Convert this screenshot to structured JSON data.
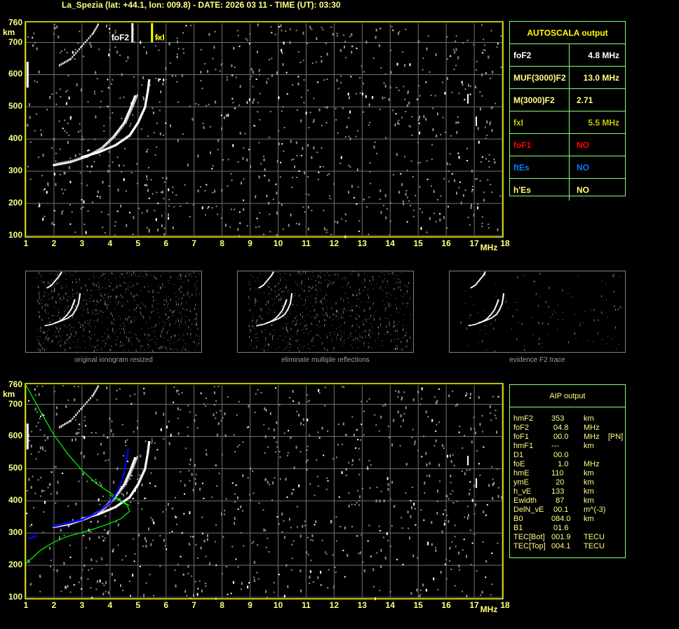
{
  "header": {
    "title": "La_Spezia (lat: +44.1, lon: 009.8) - DATE: 2026 03 11 - TIME (UT): 03:30"
  },
  "chart_data": [
    {
      "type": "scatter",
      "name": "ionogram-autoscala",
      "xlabel": "MHz",
      "ylabel": "km",
      "xlim": [
        1,
        18
      ],
      "ylim": [
        100,
        760
      ],
      "x_ticks": [
        "1",
        "2",
        "3",
        "4",
        "5",
        "6",
        "7",
        "8",
        "9",
        "10",
        "11",
        "12",
        "13",
        "14",
        "15",
        "16",
        "17",
        "18"
      ],
      "y_ticks": [
        "760",
        "700",
        "600",
        "500",
        "400",
        "300",
        "200",
        "100"
      ],
      "grid": true,
      "markers": [
        {
          "label": "foF2",
          "freq": 4.8,
          "color": "#ffffff"
        },
        {
          "label": "fxI",
          "freq": 5.5,
          "color": "#ffff00"
        }
      ],
      "traces": {
        "o_trace": [
          [
            2.0,
            320
          ],
          [
            2.6,
            330
          ],
          [
            3.2,
            348
          ],
          [
            3.7,
            372
          ],
          [
            4.1,
            405
          ],
          [
            4.5,
            450
          ],
          [
            4.75,
            500
          ],
          [
            4.9,
            535
          ]
        ],
        "x_trace": [
          [
            3.0,
            345
          ],
          [
            3.6,
            360
          ],
          [
            4.2,
            382
          ],
          [
            4.7,
            412
          ],
          [
            5.0,
            452
          ],
          [
            5.25,
            500
          ],
          [
            5.35,
            550
          ],
          [
            5.4,
            585
          ]
        ],
        "multiple_reflection": [
          [
            2.2,
            630
          ],
          [
            2.6,
            650
          ],
          [
            3.0,
            690
          ],
          [
            3.4,
            730
          ],
          [
            3.6,
            760
          ]
        ]
      }
    },
    {
      "type": "scatter",
      "name": "ionogram-aip",
      "xlabel": "MHz",
      "ylabel": "km",
      "xlim": [
        1,
        18
      ],
      "ylim": [
        100,
        760
      ],
      "x_ticks": [
        "1",
        "2",
        "3",
        "4",
        "5",
        "6",
        "7",
        "8",
        "9",
        "10",
        "11",
        "12",
        "13",
        "14",
        "15",
        "16",
        "17",
        "18"
      ],
      "y_ticks": [
        "760",
        "700",
        "600",
        "500",
        "400",
        "300",
        "200",
        "100"
      ],
      "grid": true,
      "traces": {
        "o_trace": [
          [
            2.0,
            320
          ],
          [
            2.6,
            330
          ],
          [
            3.2,
            348
          ],
          [
            3.7,
            372
          ],
          [
            4.1,
            405
          ],
          [
            4.5,
            450
          ],
          [
            4.75,
            500
          ],
          [
            4.9,
            535
          ]
        ],
        "x_trace": [
          [
            3.0,
            345
          ],
          [
            3.6,
            360
          ],
          [
            4.2,
            382
          ],
          [
            4.7,
            412
          ],
          [
            5.0,
            452
          ],
          [
            5.25,
            500
          ],
          [
            5.35,
            550
          ],
          [
            5.4,
            585
          ]
        ],
        "multiple_reflection": [
          [
            2.2,
            630
          ],
          [
            2.6,
            650
          ],
          [
            3.0,
            690
          ],
          [
            3.4,
            730
          ],
          [
            3.6,
            760
          ]
        ],
        "aip_fit_blue": [
          [
            2.0,
            322
          ],
          [
            2.5,
            332
          ],
          [
            3.0,
            343
          ],
          [
            3.5,
            362
          ],
          [
            4.0,
            395
          ],
          [
            4.3,
            435
          ],
          [
            4.5,
            485
          ],
          [
            4.6,
            535
          ],
          [
            4.65,
            560
          ]
        ],
        "profile_green_upper": [
          [
            1.0,
            760
          ],
          [
            1.5,
            680
          ],
          [
            2.0,
            605
          ],
          [
            2.5,
            545
          ],
          [
            3.0,
            495
          ],
          [
            3.5,
            455
          ],
          [
            4.0,
            425
          ],
          [
            4.4,
            400
          ],
          [
            4.7,
            385
          ]
        ],
        "profile_green_lower": [
          [
            1.0,
            205
          ],
          [
            1.5,
            245
          ],
          [
            2.0,
            272
          ],
          [
            2.5,
            290
          ],
          [
            3.0,
            302
          ],
          [
            3.5,
            315
          ],
          [
            4.0,
            330
          ],
          [
            4.4,
            345
          ],
          [
            4.7,
            368
          ],
          [
            4.6,
            388
          ],
          [
            4.3,
            403
          ],
          [
            4.0,
            418
          ]
        ]
      },
      "colors": {
        "fit": "#0000ff",
        "profile": "#00ff00"
      }
    }
  ],
  "thumbnails": [
    {
      "caption": "original ionogram resized"
    },
    {
      "caption": "eliminate multiple reflections"
    },
    {
      "caption": "evidence F2 trace"
    }
  ],
  "autoscala": {
    "title": "AUTOSCALA output",
    "rows": [
      {
        "label": "foF2",
        "value": "4.8 MHz",
        "color": "#ffffff"
      },
      {
        "label": "MUF(3000)F2",
        "value": "13.0 MHz",
        "color": "#ffff80"
      },
      {
        "label": "M(3000)F2",
        "value": "2.71",
        "color": "#ffff80"
      },
      {
        "label": "fxI",
        "value": "5.5 MHz",
        "color": "#c8c800"
      },
      {
        "label": "foF1",
        "value": "NO",
        "color": "#ff0000"
      },
      {
        "label": "ftEs",
        "value": "NO",
        "color": "#0080ff"
      },
      {
        "label": "h'Es",
        "value": "NO",
        "color": "#ffff80"
      }
    ]
  },
  "aip": {
    "title": "AIP output",
    "rows": [
      {
        "label": "hmF2",
        "value": "353",
        "unit": "km"
      },
      {
        "label": "foF2",
        "value": " 04.8",
        "unit": "MHz"
      },
      {
        "label": "foF1",
        "value": " 00.0",
        "unit": "MHz    [PN]"
      },
      {
        "label": "hmF1",
        "value": "---",
        "unit": "km"
      },
      {
        "label": "D1",
        "value": " 00.0",
        "unit": ""
      },
      {
        "label": "foE",
        "value": "   1.0",
        "unit": "MHz"
      },
      {
        "label": "hmE",
        "value": "110",
        "unit": "km"
      },
      {
        "label": "ymE",
        "value": "  20",
        "unit": "km"
      },
      {
        "label": "h_vE",
        "value": "133",
        "unit": "km"
      },
      {
        "label": "Ewidth",
        "value": "  87",
        "unit": "km"
      },
      {
        "label": "DelN_vE",
        "value": " 00.1",
        "unit": "m^(-3)"
      },
      {
        "label": "B0",
        "value": "084.0",
        "unit": "km"
      },
      {
        "label": "B1",
        "value": " 01.6",
        "unit": ""
      },
      {
        "label": "TEC[Bot]",
        "value": "001.9",
        "unit": "TECU"
      },
      {
        "label": "TEC[Top]",
        "value": "004.1",
        "unit": "TECU"
      }
    ]
  }
}
